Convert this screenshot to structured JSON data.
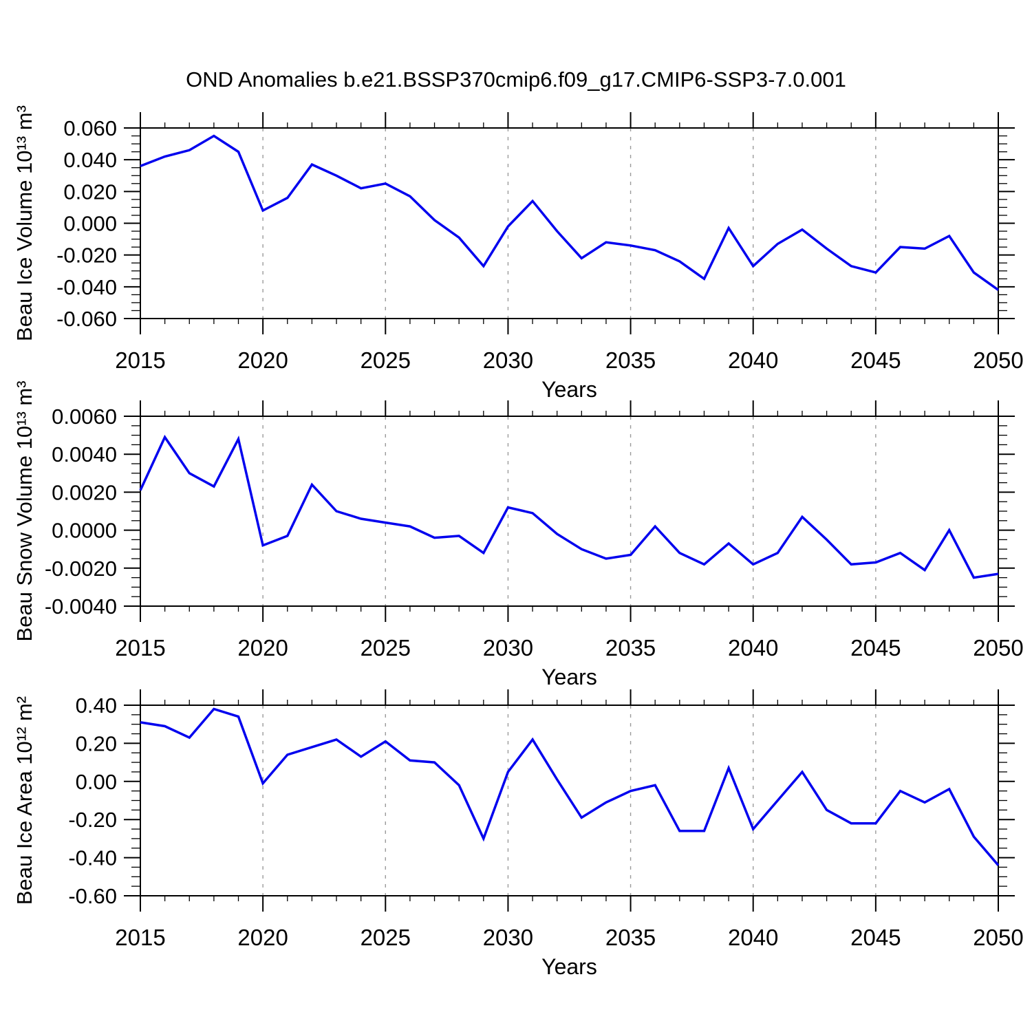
{
  "title": "OND Anomalies b.e21.BSSP370cmip6.f09_g17.CMIP6-SSP3-7.0.001",
  "style": {
    "line_color": "#0202EE",
    "grid_color": "#9a9a9a",
    "axis_color": "#000000",
    "background": "#ffffff"
  },
  "chart_data": [
    {
      "type": "line",
      "name": "beau-ice-volume",
      "ylabel": "Beau Ice Volume 10¹³ m³",
      "xlabel": "Years",
      "ylim": [
        -0.06,
        0.06
      ],
      "ytick_step": 0.02,
      "ytick_labels": [
        "0.060",
        "0.040",
        "0.020",
        "0.000",
        "-0.020",
        "-0.040",
        "-0.060"
      ],
      "xtick_years": [
        2015,
        2020,
        2025,
        2030,
        2035,
        2040,
        2045,
        2050
      ],
      "grid_years": [
        2020,
        2025,
        2030,
        2035,
        2040,
        2045
      ],
      "x": [
        2015,
        2016,
        2017,
        2018,
        2019,
        2020,
        2021,
        2022,
        2023,
        2024,
        2025,
        2026,
        2027,
        2028,
        2029,
        2030,
        2031,
        2032,
        2033,
        2034,
        2035,
        2036,
        2037,
        2038,
        2039,
        2040,
        2041,
        2042,
        2043,
        2044,
        2045,
        2046,
        2047,
        2048,
        2049,
        2050
      ],
      "values": [
        0.036,
        0.042,
        0.046,
        0.055,
        0.045,
        0.008,
        0.016,
        0.037,
        0.03,
        0.022,
        0.025,
        0.017,
        0.002,
        -0.009,
        -0.027,
        -0.002,
        0.014,
        -0.005,
        -0.022,
        -0.012,
        -0.014,
        -0.017,
        -0.024,
        -0.035,
        -0.003,
        -0.027,
        -0.013,
        -0.004,
        -0.016,
        -0.027,
        -0.031,
        -0.015,
        -0.016,
        -0.008,
        -0.031,
        -0.042
      ]
    },
    {
      "type": "line",
      "name": "beau-snow-volume",
      "ylabel": "Beau Snow Volume 10¹³ m³",
      "xlabel": "Years",
      "ylim": [
        -0.004,
        0.006
      ],
      "ytick_step": 0.002,
      "ytick_labels": [
        "0.0060",
        "0.0040",
        "0.0020",
        "0.0000",
        "-0.0020",
        "-0.0040"
      ],
      "xtick_years": [
        2015,
        2020,
        2025,
        2030,
        2035,
        2040,
        2045,
        2050
      ],
      "grid_years": [
        2020,
        2025,
        2030,
        2035,
        2040,
        2045
      ],
      "x": [
        2015,
        2016,
        2017,
        2018,
        2019,
        2020,
        2021,
        2022,
        2023,
        2024,
        2025,
        2026,
        2027,
        2028,
        2029,
        2030,
        2031,
        2032,
        2033,
        2034,
        2035,
        2036,
        2037,
        2038,
        2039,
        2040,
        2041,
        2042,
        2043,
        2044,
        2045,
        2046,
        2047,
        2048,
        2049,
        2050
      ],
      "values": [
        0.0021,
        0.0049,
        0.003,
        0.0023,
        0.0048,
        -0.0008,
        -0.0003,
        0.0024,
        0.001,
        0.0006,
        0.0004,
        0.0002,
        -0.0004,
        -0.0003,
        -0.0012,
        0.0012,
        0.0009,
        -0.0002,
        -0.001,
        -0.0015,
        -0.0013,
        0.0002,
        -0.0012,
        -0.0018,
        -0.0007,
        -0.0018,
        -0.0012,
        0.0007,
        -0.0005,
        -0.0018,
        -0.0017,
        -0.0012,
        -0.0021,
        0.0,
        -0.0025,
        -0.0023
      ]
    },
    {
      "type": "line",
      "name": "beau-ice-area",
      "ylabel": "Beau Ice Area 10¹² m²",
      "xlabel": "Years",
      "ylim": [
        -0.6,
        0.4
      ],
      "ytick_step": 0.2,
      "ytick_labels": [
        "0.40",
        "0.20",
        "0.00",
        "-0.20",
        "-0.40",
        "-0.60"
      ],
      "xtick_years": [
        2015,
        2020,
        2025,
        2030,
        2035,
        2040,
        2045,
        2050
      ],
      "grid_years": [
        2020,
        2025,
        2030,
        2035,
        2040,
        2045
      ],
      "x": [
        2015,
        2016,
        2017,
        2018,
        2019,
        2020,
        2021,
        2022,
        2023,
        2024,
        2025,
        2026,
        2027,
        2028,
        2029,
        2030,
        2031,
        2032,
        2033,
        2034,
        2035,
        2036,
        2037,
        2038,
        2039,
        2040,
        2041,
        2042,
        2043,
        2044,
        2045,
        2046,
        2047,
        2048,
        2049,
        2050
      ],
      "values": [
        0.31,
        0.29,
        0.23,
        0.38,
        0.34,
        -0.01,
        0.14,
        0.18,
        0.22,
        0.13,
        0.21,
        0.11,
        0.1,
        -0.02,
        -0.3,
        0.05,
        0.22,
        0.01,
        -0.19,
        -0.11,
        -0.05,
        -0.02,
        -0.26,
        -0.26,
        0.07,
        -0.25,
        -0.1,
        0.05,
        -0.15,
        -0.22,
        -0.22,
        -0.05,
        -0.11,
        -0.04,
        -0.29,
        -0.44
      ]
    }
  ]
}
